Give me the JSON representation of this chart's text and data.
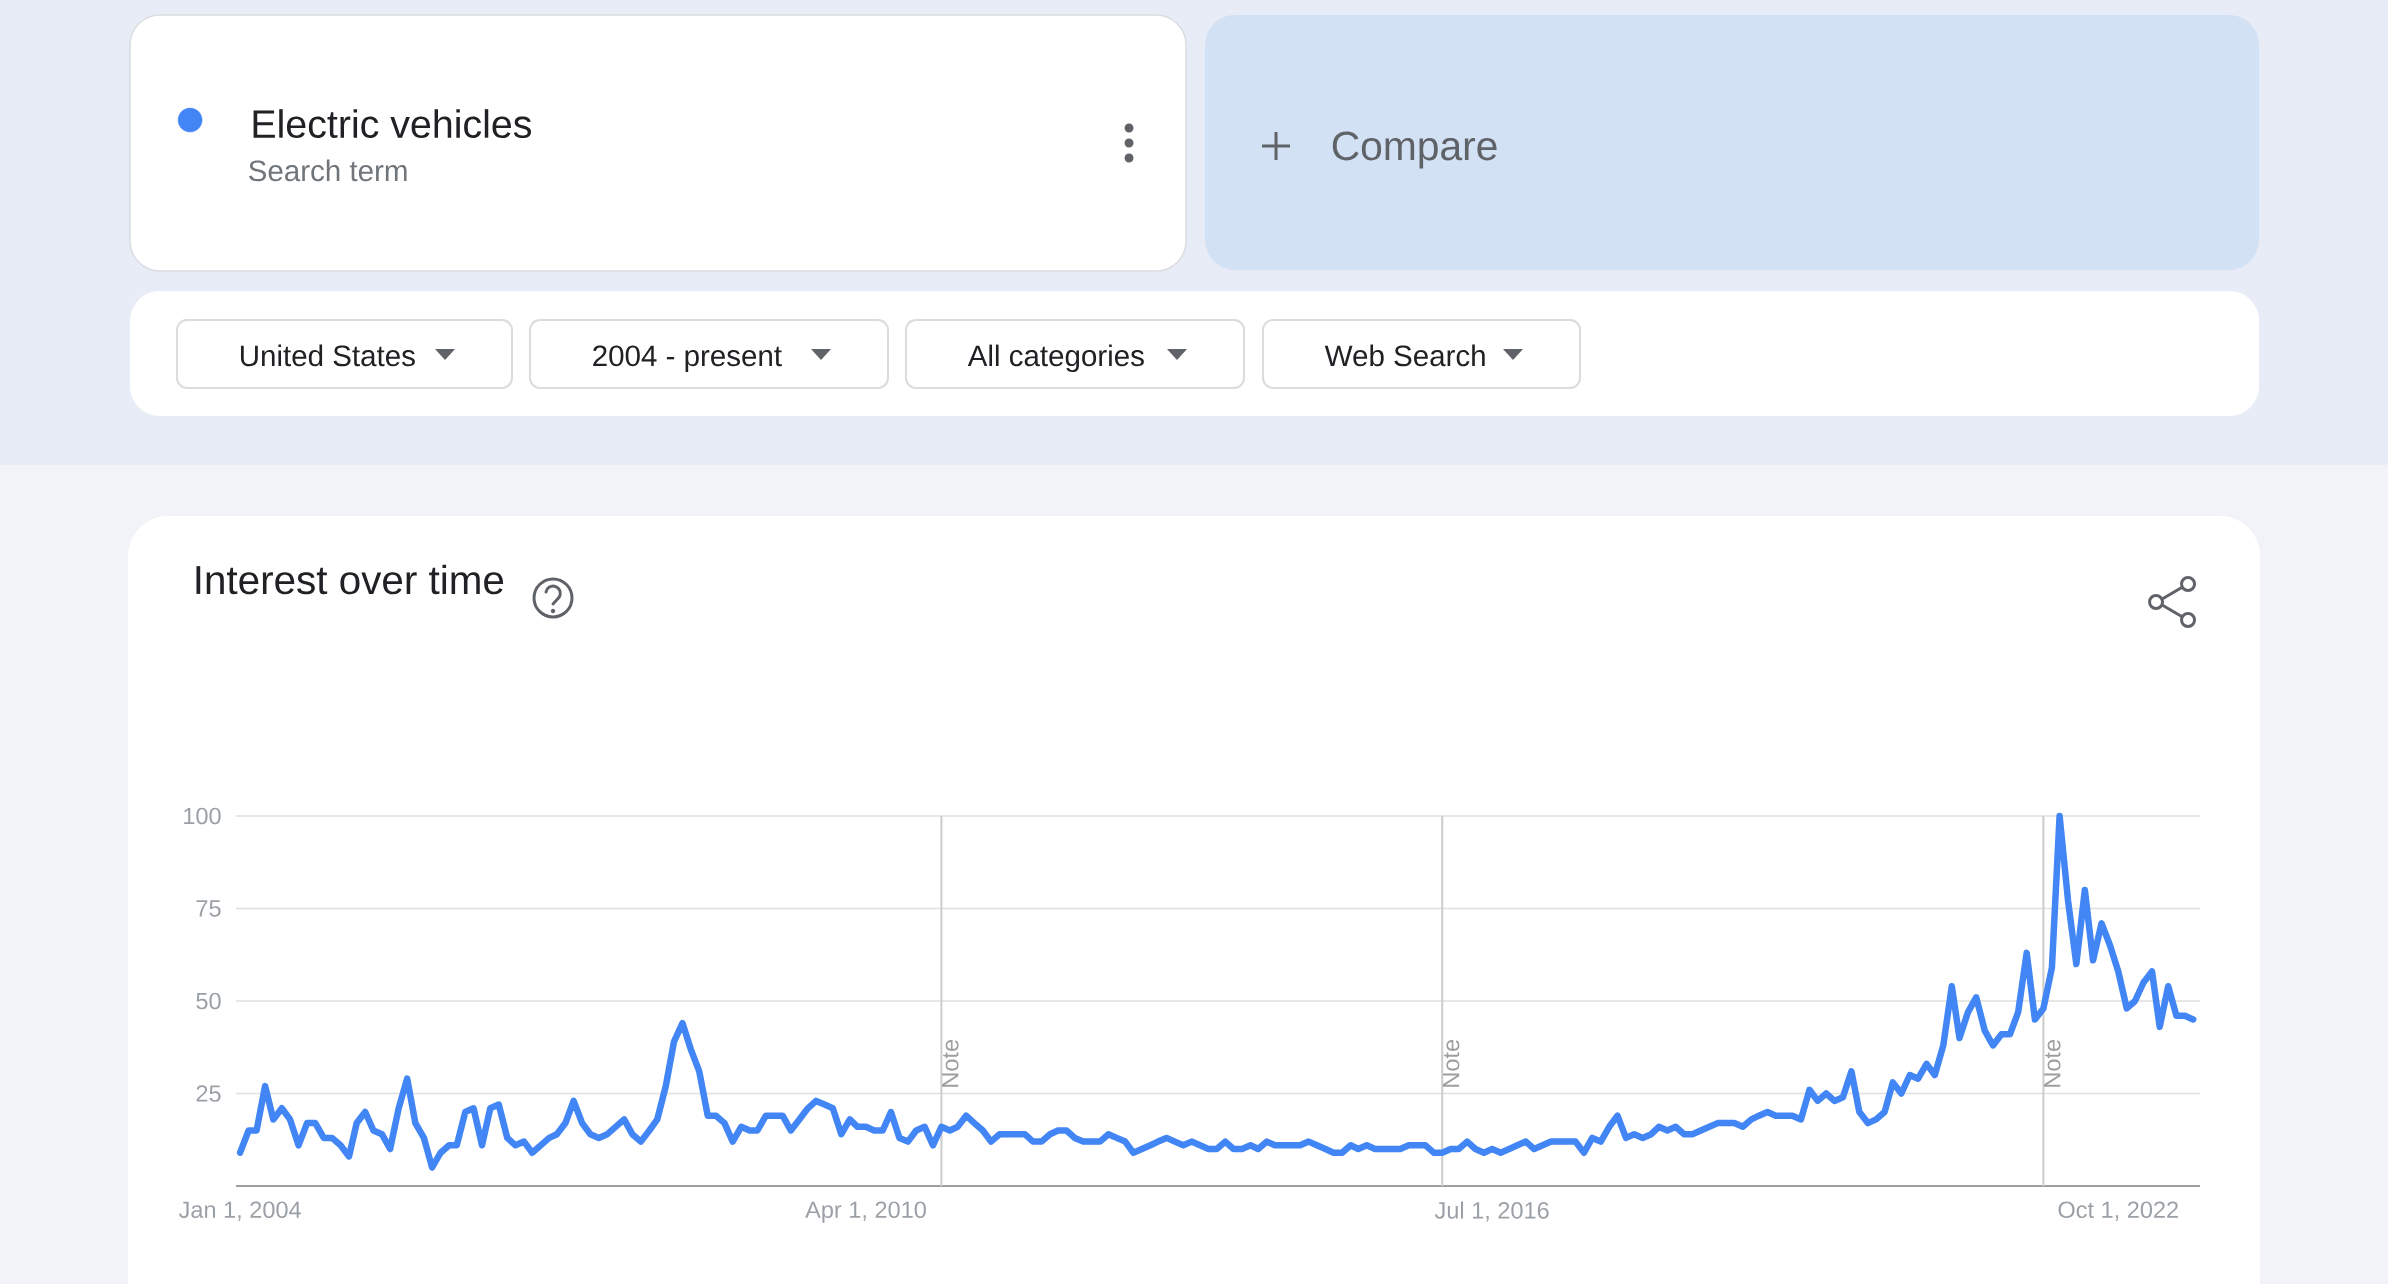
{
  "chart_data": {
    "type": "line",
    "title": "Interest over time",
    "x": [
      "2004-01",
      "2004-02",
      "2004-03",
      "2004-04",
      "2004-05",
      "2004-06",
      "2004-07",
      "2004-08",
      "2004-09",
      "2004-10",
      "2004-11",
      "2004-12",
      "2005-01",
      "2005-02",
      "2005-03",
      "2005-04",
      "2005-05",
      "2005-06",
      "2005-07",
      "2005-08",
      "2005-09",
      "2005-10",
      "2005-11",
      "2005-12",
      "2006-01",
      "2006-02",
      "2006-03",
      "2006-04",
      "2006-05",
      "2006-06",
      "2006-07",
      "2006-08",
      "2006-09",
      "2006-10",
      "2006-11",
      "2006-12",
      "2007-01",
      "2007-02",
      "2007-03",
      "2007-04",
      "2007-05",
      "2007-06",
      "2007-07",
      "2007-08",
      "2007-09",
      "2007-10",
      "2007-11",
      "2007-12",
      "2008-01",
      "2008-02",
      "2008-03",
      "2008-04",
      "2008-05",
      "2008-06",
      "2008-07",
      "2008-08",
      "2008-09",
      "2008-10",
      "2008-11",
      "2008-12",
      "2009-01",
      "2009-02",
      "2009-03",
      "2009-04",
      "2009-05",
      "2009-06",
      "2009-07",
      "2009-08",
      "2009-09",
      "2009-10",
      "2009-11",
      "2009-12",
      "2010-01",
      "2010-02",
      "2010-03",
      "2010-04",
      "2010-05",
      "2010-06",
      "2010-07",
      "2010-08",
      "2010-09",
      "2010-10",
      "2010-11",
      "2010-12",
      "2011-01",
      "2011-02",
      "2011-03",
      "2011-04",
      "2011-05",
      "2011-06",
      "2011-07",
      "2011-08",
      "2011-09",
      "2011-10",
      "2011-11",
      "2011-12",
      "2012-01",
      "2012-02",
      "2012-03",
      "2012-04",
      "2012-05",
      "2012-06",
      "2012-07",
      "2012-08",
      "2012-09",
      "2012-10",
      "2012-11",
      "2012-12",
      "2013-01",
      "2013-02",
      "2013-03",
      "2013-04",
      "2013-05",
      "2013-06",
      "2013-07",
      "2013-08",
      "2013-09",
      "2013-10",
      "2013-11",
      "2013-12",
      "2014-01",
      "2014-02",
      "2014-03",
      "2014-04",
      "2014-05",
      "2014-06",
      "2014-07",
      "2014-08",
      "2014-09",
      "2014-10",
      "2014-11",
      "2014-12",
      "2015-01",
      "2015-02",
      "2015-03",
      "2015-04",
      "2015-05",
      "2015-06",
      "2015-07",
      "2015-08",
      "2015-09",
      "2015-10",
      "2015-11",
      "2015-12",
      "2016-01",
      "2016-02",
      "2016-03",
      "2016-04",
      "2016-05",
      "2016-06",
      "2016-07",
      "2016-08",
      "2016-09",
      "2016-10",
      "2016-11",
      "2016-12",
      "2017-01",
      "2017-02",
      "2017-03",
      "2017-04",
      "2017-05",
      "2017-06",
      "2017-07",
      "2017-08",
      "2017-09",
      "2017-10",
      "2017-11",
      "2017-12",
      "2018-01",
      "2018-02",
      "2018-03",
      "2018-04",
      "2018-05",
      "2018-06",
      "2018-07",
      "2018-08",
      "2018-09",
      "2018-10",
      "2018-11",
      "2018-12",
      "2019-01",
      "2019-02",
      "2019-03",
      "2019-04",
      "2019-05",
      "2019-06",
      "2019-07",
      "2019-08",
      "2019-09",
      "2019-10",
      "2019-11",
      "2019-12",
      "2020-01",
      "2020-02",
      "2020-03",
      "2020-04",
      "2020-05",
      "2020-06",
      "2020-07",
      "2020-08",
      "2020-09",
      "2020-10",
      "2020-11",
      "2020-12",
      "2021-01",
      "2021-02",
      "2021-03",
      "2021-04",
      "2021-05",
      "2021-06",
      "2021-07",
      "2021-08",
      "2021-09",
      "2021-10",
      "2021-11",
      "2021-12",
      "2022-01",
      "2022-02",
      "2022-03",
      "2022-04",
      "2022-05",
      "2022-06",
      "2022-07",
      "2022-08",
      "2022-09",
      "2022-10",
      "2022-11",
      "2022-12",
      "2023-01",
      "2023-02",
      "2023-03",
      "2023-04",
      "2023-05",
      "2023-06",
      "2023-07"
    ],
    "series": [
      {
        "name": "Electric vehicles",
        "color": "#4285f4",
        "values": [
          9,
          15,
          15,
          27,
          18,
          21,
          18,
          11,
          17,
          17,
          13,
          13,
          11,
          8,
          17,
          20,
          15,
          14,
          10,
          21,
          29,
          17,
          13,
          5,
          9,
          11,
          11,
          20,
          21,
          11,
          21,
          22,
          13,
          11,
          12,
          9,
          11,
          13,
          14,
          17,
          23,
          17,
          14,
          13,
          14,
          16,
          18,
          14,
          12,
          15,
          18,
          27,
          39,
          44,
          37,
          31,
          19,
          19,
          17,
          12,
          16,
          15,
          15,
          19,
          19,
          19,
          15,
          18,
          21,
          23,
          22,
          21,
          14,
          18,
          16,
          16,
          15,
          15,
          20,
          13,
          12,
          15,
          16,
          11,
          16,
          15,
          16,
          19,
          17,
          15,
          12,
          14,
          14,
          14,
          14,
          12,
          12,
          14,
          15,
          15,
          13,
          12,
          12,
          12,
          14,
          13,
          12,
          9,
          10,
          11,
          12,
          13,
          12,
          11,
          12,
          11,
          10,
          10,
          12,
          10,
          10,
          11,
          10,
          12,
          11,
          11,
          11,
          11,
          12,
          11,
          10,
          9,
          9,
          11,
          10,
          11,
          10,
          10,
          10,
          10,
          11,
          11,
          11,
          9,
          9,
          10,
          10,
          12,
          10,
          9,
          10,
          9,
          10,
          11,
          12,
          10,
          11,
          12,
          12,
          12,
          12,
          9,
          13,
          12,
          16,
          19,
          13,
          14,
          13,
          14,
          16,
          15,
          16,
          14,
          14,
          15,
          16,
          17,
          17,
          17,
          16,
          18,
          19,
          20,
          19,
          19,
          19,
          18,
          26,
          23,
          25,
          23,
          24,
          31,
          20,
          17,
          18,
          20,
          28,
          25,
          30,
          29,
          33,
          30,
          38,
          54,
          40,
          47,
          51,
          42,
          38,
          41,
          41,
          47,
          63,
          45,
          48,
          59,
          100,
          77,
          60,
          80,
          61,
          71,
          65,
          58,
          48,
          50,
          55,
          58,
          43,
          54,
          46,
          46,
          45
        ]
      }
    ],
    "xlim": [
      "2003-12-17",
      "2023-07-26"
    ],
    "ylim": [
      0,
      100
    ],
    "xticks": [
      {
        "value": "2004-01-01",
        "label": "Jan 1, 2004"
      },
      {
        "value": "2010-04-01",
        "label": "Apr 1, 2010"
      },
      {
        "value": "2016-07-01",
        "label": "Jul 1, 2016"
      },
      {
        "value": "2022-10-01",
        "label": "Oct 1, 2022"
      }
    ],
    "yticks": [
      25,
      50,
      75,
      100
    ],
    "grid": "y",
    "legend": "top left",
    "line_style": "solid",
    "ref_lines": [
      {
        "axis": "x",
        "value": "2011-01-01",
        "label": "Note",
        "color": "#cccccc"
      },
      {
        "axis": "x",
        "value": "2016-01-01",
        "label": "Note",
        "color": "#cccccc"
      },
      {
        "axis": "x",
        "value": "2022-01-01",
        "label": "Note",
        "color": "#cccccc"
      }
    ],
    "annotations": [
      "Search term",
      "Compare",
      "United States",
      "2004 - present",
      "All categories",
      "Web Search"
    ]
  }
}
